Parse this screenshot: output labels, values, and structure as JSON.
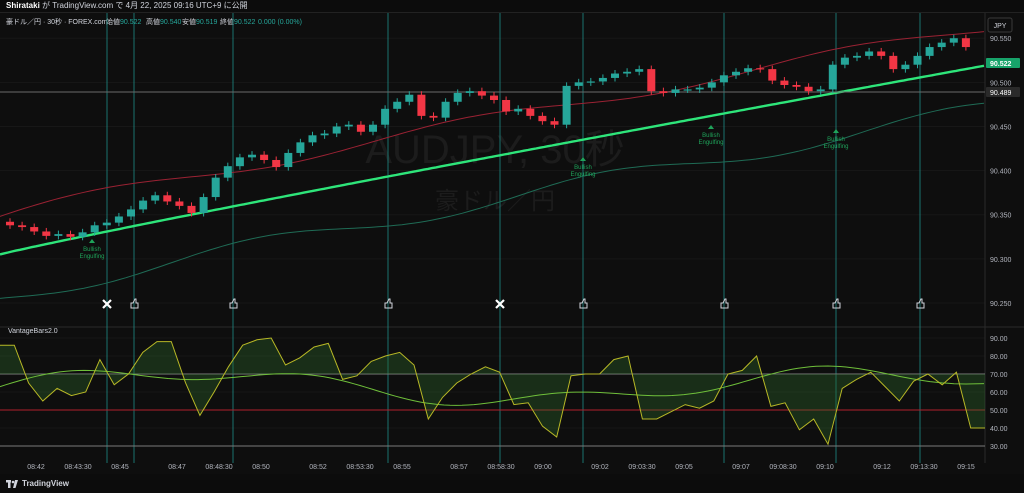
{
  "header": {
    "user": "Shirataki",
    "publish_text": "が TradingView.com で 4月 22, 2025 09:16 UTC+9 に公開"
  },
  "legend": {
    "symbol": "豪ドル／円 · 30秒 · FOREX.com",
    "open_label": "始値",
    "open_value": "90.522",
    "high_label": "高値",
    "high_value": "90.540",
    "low_label": "安値",
    "low_value": "90.519",
    "close_label": "終値",
    "close_value": "90.522",
    "change": "0.000 (0.00%)"
  },
  "currency_button": "JPY",
  "watermark": {
    "line1": "AUDJPY, 30秒",
    "line2": "豪ドル／円"
  },
  "price_axis": {
    "ticks": [
      "90.550",
      "90.500",
      "90.450",
      "90.400",
      "90.350",
      "90.300",
      "90.250"
    ],
    "last_price_label": "90.522",
    "line_price_label": "90.489"
  },
  "indicator": {
    "name": "VantageBars2.0",
    "ticks": [
      "90.00",
      "80.00",
      "70.00",
      "60.00",
      "50.00",
      "40.00",
      "30.00"
    ]
  },
  "time_axis": {
    "labels": [
      "08:42",
      "08:43:30",
      "08:45",
      "08:47",
      "08:48:30",
      "08:50",
      "08:52",
      "08:53:30",
      "08:55",
      "08:57",
      "08:58:30",
      "09:00",
      "09:02",
      "09:03:30",
      "09:05",
      "09:07",
      "09:08:30",
      "09:10",
      "09:12",
      "09:13:30",
      "09:15"
    ]
  },
  "annotations": {
    "engulfing": [
      {
        "line1": "Bullish",
        "line2": "Engulfing"
      },
      {
        "line1": "Bullish",
        "line2": "Engulfing"
      },
      {
        "line1": "Bullish",
        "line2": "Engulfing"
      },
      {
        "line1": "Bullish",
        "line2": "Engulfing"
      }
    ],
    "markers": [
      "x",
      "thumb",
      "thumb",
      "thumb",
      "x",
      "thumb",
      "thumb",
      "thumb",
      "thumb"
    ]
  },
  "colors": {
    "up": "#26a69a",
    "down": "#f23645",
    "ma_fast": "#2ee57a",
    "band_upper": "#9a2233",
    "band_lower": "#1f6b55",
    "osc_yellow": "#b8b826",
    "osc_green": "#6fbf3a",
    "vline": "#1e8c86"
  },
  "footer": {
    "brand": "TradingView"
  }
}
